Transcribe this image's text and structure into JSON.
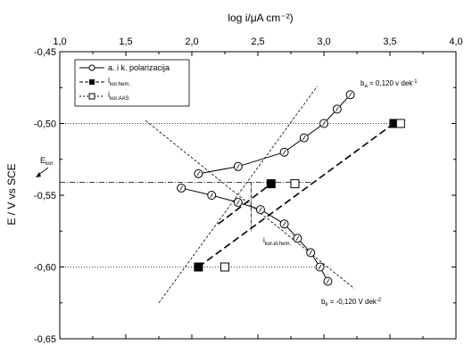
{
  "chart_data": {
    "type": "scatter",
    "x_axis": {
      "label": "log i/μA cm⁻²)",
      "range": [
        1.0,
        4.0
      ],
      "ticks": [
        "1,0",
        "1,5",
        "2,0",
        "2,5",
        "3,0",
        "3,5",
        "4,0"
      ],
      "position": "top"
    },
    "y_axis": {
      "label": "E / V vs SCE",
      "range": [
        -0.65,
        -0.45
      ],
      "ticks": [
        "-0,45",
        "-0,50",
        "-0,55",
        "-0,60",
        "-0,65"
      ]
    },
    "legend": {
      "placement": "top-left",
      "entries": [
        {
          "label": "a. i k. polarizacija",
          "sub": ""
        },
        {
          "label": "i",
          "sub": "kor.hem."
        },
        {
          "label": "i",
          "sub": "kor.AAS"
        }
      ]
    },
    "series": [
      {
        "name": "a. i k. polarizacija",
        "marker": "open-circle",
        "line": "solid",
        "branches": [
          {
            "x": [
              2.05,
              2.35,
              2.7,
              2.85,
              3.0,
              3.1,
              3.2
            ],
            "y": [
              -0.535,
              -0.53,
              -0.52,
              -0.51,
              -0.5,
              -0.49,
              -0.48
            ]
          },
          {
            "x": [
              1.92,
              2.15,
              2.35,
              2.52,
              2.7,
              2.8,
              2.9,
              2.97,
              3.03
            ],
            "y": [
              -0.545,
              -0.55,
              -0.555,
              -0.56,
              -0.57,
              -0.58,
              -0.59,
              -0.6,
              -0.61
            ]
          }
        ]
      },
      {
        "name": "i kor.hem.",
        "marker": "filled-square",
        "x": [
          2.05,
          2.6,
          3.53
        ],
        "y": [
          -0.6,
          -0.542,
          -0.5
        ]
      },
      {
        "name": "i kor.AAS",
        "marker": "open-square",
        "x": [
          2.25,
          2.78,
          3.58
        ],
        "y": [
          -0.6,
          -0.542,
          -0.5
        ]
      }
    ],
    "reference_lines": [
      {
        "style": "dotted",
        "x": [
          1.0,
          3.55
        ],
        "y": [
          -0.5,
          -0.5
        ]
      },
      {
        "style": "dotted",
        "x": [
          1.0,
          3.05
        ],
        "y": [
          -0.6,
          -0.6
        ]
      },
      {
        "style": "dashdot",
        "x": [
          1.0,
          2.9
        ],
        "y": [
          -0.541,
          -0.541
        ]
      }
    ],
    "tafel_lines": [
      {
        "x": [
          1.65,
          3.23
        ],
        "y": [
          -0.498,
          -0.615
        ]
      },
      {
        "x": [
          1.75,
          2.95
        ],
        "y": [
          -0.625,
          -0.474
        ]
      }
    ],
    "dashed_lines": [
      {
        "x": [
          2.05,
          3.53
        ],
        "y": [
          -0.6,
          -0.5
        ]
      },
      {
        "x": [
          2.2,
          2.6
        ],
        "y": [
          -0.57,
          -0.542
        ]
      }
    ],
    "vertical_marker": {
      "x": 2.45,
      "y": [
        -0.541,
        -0.575
      ]
    },
    "annotations": [
      {
        "text": "b",
        "sub": "a",
        "suffix": " = 0,120 v dek",
        "sup": "-1"
      },
      {
        "text": "b",
        "sub": "k",
        "suffix": " = -0,120 V dek",
        "sup": "-2"
      },
      {
        "text": "E",
        "sub": "kor"
      },
      {
        "text": "i",
        "sub": "kor.el.hem."
      }
    ],
    "grid": false
  }
}
